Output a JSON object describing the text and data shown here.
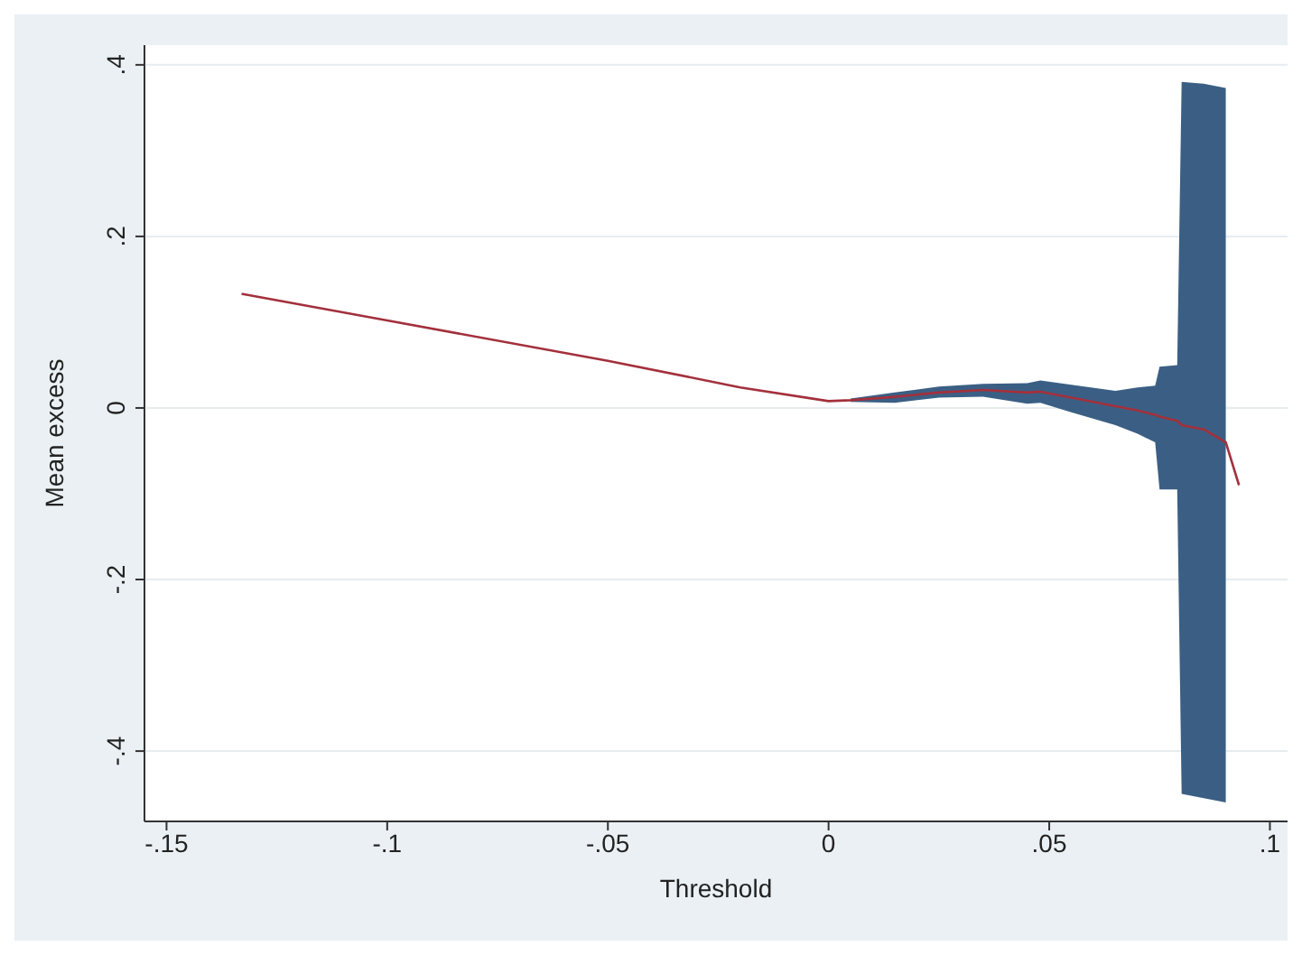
{
  "chart_data": {
    "type": "line",
    "xlabel": "Threshold",
    "ylabel": "Mean excess",
    "xlim": [
      -0.155,
      0.104
    ],
    "ylim": [
      -0.482,
      0.423
    ],
    "xticks": [
      {
        "value": -0.15,
        "label": "-.15"
      },
      {
        "value": -0.1,
        "label": "-.1"
      },
      {
        "value": -0.05,
        "label": "-.05"
      },
      0,
      {
        "value": 0.05,
        "label": ".05"
      },
      {
        "value": 0.1,
        "label": ".1"
      }
    ],
    "yticks": [
      {
        "value": -0.4,
        "label": "-.4"
      },
      {
        "value": -0.2,
        "label": "-.2"
      },
      0,
      {
        "value": 0.2,
        "label": ".2"
      },
      {
        "value": 0.4,
        "label": ".4"
      }
    ],
    "grid": "y",
    "marker": "none",
    "line_style": "solid",
    "series": [
      {
        "color": "#a3303c",
        "x": [
          -0.133,
          -0.1,
          -0.05,
          -0.02,
          0,
          0.005,
          0.015,
          0.025,
          0.035,
          0.045,
          0.048,
          0.055,
          0.065,
          0.07,
          0.074,
          0.075,
          0.079,
          0.08,
          0.085,
          0.09,
          0.093
        ],
        "values": [
          0.133,
          0.102,
          0.055,
          0.024,
          0.008,
          0.009,
          0.013,
          0.018,
          0.021,
          0.018,
          0.019,
          0.012,
          0.002,
          -0.003,
          -0.008,
          -0.01,
          -0.015,
          -0.02,
          -0.025,
          -0.04,
          -0.09
        ],
        "lower": [
          null,
          null,
          null,
          null,
          null,
          0.007,
          0.006,
          0.012,
          0.013,
          0.005,
          0.006,
          -0.005,
          -0.02,
          -0.03,
          -0.04,
          -0.095,
          -0.095,
          -0.45,
          -0.455,
          -0.46,
          null
        ],
        "upper": [
          null,
          null,
          null,
          null,
          null,
          0.011,
          0.018,
          0.025,
          0.028,
          0.029,
          0.032,
          0.027,
          0.02,
          0.024,
          0.026,
          0.048,
          0.05,
          0.38,
          0.378,
          0.373,
          null
        ]
      }
    ]
  }
}
